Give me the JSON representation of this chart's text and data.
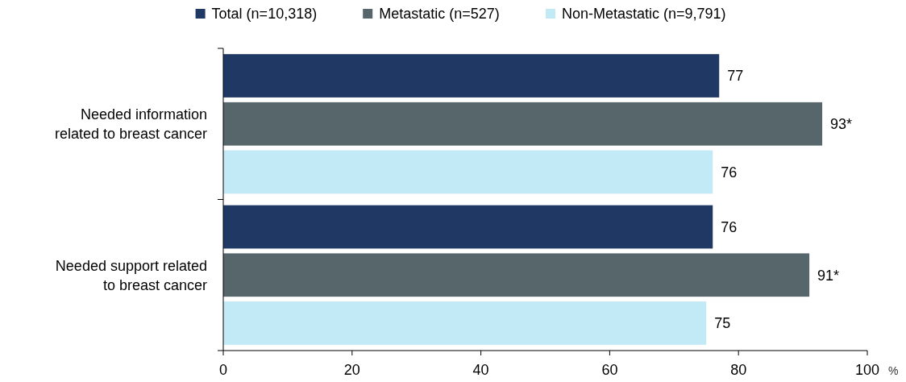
{
  "chart_data": {
    "type": "bar",
    "orientation": "horizontal",
    "categories": [
      "Needed information related to breast cancer",
      "Needed support related to breast cancer"
    ],
    "series": [
      {
        "name": "Total (n=10,318)",
        "color": "#203864",
        "values": [
          77,
          76
        ],
        "value_labels": [
          "77",
          "76"
        ]
      },
      {
        "name": "Metastatic (n=527)",
        "color": "#56666b",
        "values": [
          93,
          91
        ],
        "value_labels": [
          "93*",
          "91*"
        ]
      },
      {
        "name": "Non-Metastatic (n=9,791)",
        "color": "#c2eaf6",
        "values": [
          76,
          75
        ],
        "value_labels": [
          "76",
          "75"
        ]
      }
    ],
    "xlim": [
      0,
      100
    ],
    "xticks": [
      0,
      20,
      40,
      60,
      80,
      100
    ],
    "xlabel": "%",
    "legend": "top",
    "grid": false
  }
}
